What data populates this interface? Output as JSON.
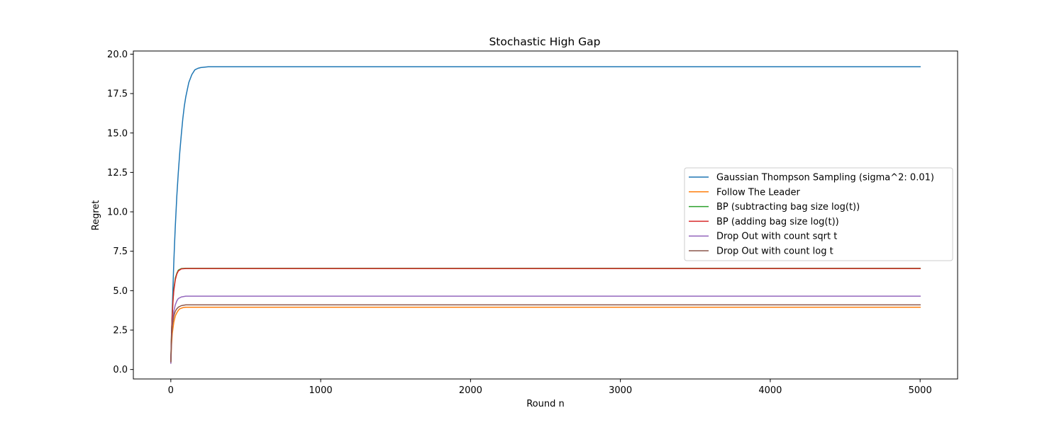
{
  "chart_data": {
    "type": "line",
    "title": "Stochastic High Gap",
    "xlabel": "Round n",
    "ylabel": "Regret",
    "xlim": [
      -250,
      5250
    ],
    "ylim": [
      -0.6,
      20.2
    ],
    "xticks": [
      0,
      1000,
      2000,
      3000,
      4000,
      5000
    ],
    "yticks": [
      0.0,
      2.5,
      5.0,
      7.5,
      10.0,
      12.5,
      15.0,
      17.5,
      20.0
    ],
    "xtick_labels": [
      "0",
      "1000",
      "2000",
      "3000",
      "4000",
      "5000"
    ],
    "ytick_labels": [
      "0.0",
      "2.5",
      "5.0",
      "7.5",
      "10.0",
      "12.5",
      "15.0",
      "17.5",
      "20.0"
    ],
    "grid": false,
    "legend_position": "center-right",
    "series": [
      {
        "name": "Gaussian Thompson Sampling (sigma^2: 0.01)",
        "color": "#1f77b4",
        "points": [
          [
            0,
            0.4
          ],
          [
            5,
            2.2
          ],
          [
            10,
            3.9
          ],
          [
            15,
            5.4
          ],
          [
            20,
            6.8
          ],
          [
            25,
            8.0
          ],
          [
            30,
            9.1
          ],
          [
            40,
            11.0
          ],
          [
            50,
            12.5
          ],
          [
            60,
            13.8
          ],
          [
            70,
            14.9
          ],
          [
            80,
            15.9
          ],
          [
            90,
            16.7
          ],
          [
            100,
            17.3
          ],
          [
            120,
            18.2
          ],
          [
            140,
            18.7
          ],
          [
            160,
            19.0
          ],
          [
            180,
            19.1
          ],
          [
            200,
            19.15
          ],
          [
            250,
            19.2
          ],
          [
            5000,
            19.2
          ]
        ]
      },
      {
        "name": "Follow The Leader",
        "color": "#ff7f0e",
        "points": [
          [
            0,
            0.4
          ],
          [
            5,
            1.6
          ],
          [
            10,
            2.3
          ],
          [
            20,
            3.0
          ],
          [
            30,
            3.4
          ],
          [
            40,
            3.6
          ],
          [
            50,
            3.75
          ],
          [
            60,
            3.85
          ],
          [
            80,
            3.92
          ],
          [
            100,
            3.95
          ],
          [
            5000,
            3.95
          ]
        ]
      },
      {
        "name": "BP (subtracting bag size log(t))",
        "color": "#2ca02c",
        "points": [
          [
            0,
            0.5
          ],
          [
            5,
            2.5
          ],
          [
            10,
            3.6
          ],
          [
            15,
            4.5
          ],
          [
            20,
            5.1
          ],
          [
            30,
            5.8
          ],
          [
            40,
            6.1
          ],
          [
            50,
            6.3
          ],
          [
            70,
            6.4
          ],
          [
            100,
            6.42
          ],
          [
            5000,
            6.42
          ]
        ]
      },
      {
        "name": "BP (adding bag size log(t))",
        "color": "#d62728",
        "points": [
          [
            0,
            0.5
          ],
          [
            5,
            2.4
          ],
          [
            10,
            3.5
          ],
          [
            15,
            4.4
          ],
          [
            20,
            5.0
          ],
          [
            30,
            5.7
          ],
          [
            40,
            6.05
          ],
          [
            50,
            6.25
          ],
          [
            70,
            6.38
          ],
          [
            100,
            6.4
          ],
          [
            5000,
            6.4
          ]
        ]
      },
      {
        "name": "Drop Out with count sqrt t",
        "color": "#9467bd",
        "points": [
          [
            0,
            0.4
          ],
          [
            5,
            2.0
          ],
          [
            10,
            2.9
          ],
          [
            20,
            3.7
          ],
          [
            30,
            4.1
          ],
          [
            40,
            4.35
          ],
          [
            50,
            4.5
          ],
          [
            70,
            4.6
          ],
          [
            100,
            4.65
          ],
          [
            5000,
            4.65
          ]
        ]
      },
      {
        "name": "Drop Out with count log t",
        "color": "#8c564b",
        "points": [
          [
            0,
            0.5
          ],
          [
            5,
            2.1
          ],
          [
            10,
            2.8
          ],
          [
            20,
            3.4
          ],
          [
            30,
            3.7
          ],
          [
            40,
            3.85
          ],
          [
            50,
            3.95
          ],
          [
            70,
            4.05
          ],
          [
            100,
            4.1
          ],
          [
            5000,
            4.1
          ]
        ]
      }
    ]
  }
}
